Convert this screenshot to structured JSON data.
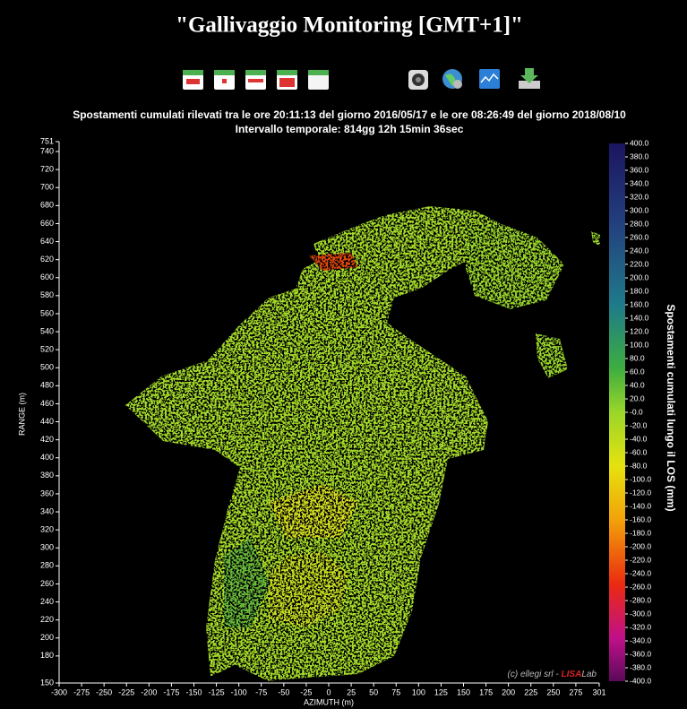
{
  "header": {
    "title": "\"Gallivaggio Monitoring [GMT+1]\""
  },
  "chart_data": {
    "type": "radar-map",
    "title": "Spostamenti cumulati rilevati tra le ore 20:11:13 del giorno 2016/05/17 e le ore 08:26:49 del giorno 2018/08/10",
    "subtitle": "Intervallo temporale: 814gg 12h 15min 36sec",
    "xlabel": "AZIMUTH (m)",
    "ylabel": "RANGE (m)",
    "xlim": [
      -300,
      301
    ],
    "xticks": [
      -300,
      -275,
      -250,
      -225,
      -200,
      -175,
      -150,
      -125,
      -100,
      -75,
      -50,
      -25,
      0,
      25,
      50,
      75,
      100,
      125,
      150,
      175,
      200,
      225,
      250,
      275,
      301
    ],
    "ylim": [
      150,
      751
    ],
    "yticks": [
      150,
      180,
      200,
      220,
      240,
      260,
      280,
      300,
      320,
      340,
      360,
      380,
      400,
      420,
      440,
      460,
      480,
      500,
      520,
      540,
      560,
      580,
      600,
      620,
      640,
      660,
      680,
      700,
      720,
      740,
      751
    ],
    "colorbar": {
      "label": "Spostamenti cumulati lungo il LOS (mm)",
      "lim": [
        -400,
        400
      ],
      "ticks": [
        {
          "value": 400,
          "label": "400.0"
        },
        {
          "value": 380,
          "label": "380.0"
        },
        {
          "value": 360,
          "label": "360.0"
        },
        {
          "value": 340,
          "label": "340.0"
        },
        {
          "value": 320,
          "label": "320.0"
        },
        {
          "value": 300,
          "label": "300.0"
        },
        {
          "value": 280,
          "label": "280.0"
        },
        {
          "value": 260,
          "label": "260.0"
        },
        {
          "value": 240,
          "label": "240.0"
        },
        {
          "value": 220,
          "label": "220.0"
        },
        {
          "value": 200,
          "label": "200.0"
        },
        {
          "value": 180,
          "label": "180.0"
        },
        {
          "value": 160,
          "label": "160.0"
        },
        {
          "value": 140,
          "label": "140.0"
        },
        {
          "value": 120,
          "label": "120.0"
        },
        {
          "value": 100,
          "label": "100.0"
        },
        {
          "value": 80,
          "label": "80.0"
        },
        {
          "value": 60,
          "label": "60.0"
        },
        {
          "value": 40,
          "label": "40.0"
        },
        {
          "value": 20,
          "label": "20.0"
        },
        {
          "value": 0,
          "label": "-0.0"
        },
        {
          "value": -20,
          "label": "-20.0"
        },
        {
          "value": -40,
          "label": "-40.0"
        },
        {
          "value": -60,
          "label": "-60.0"
        },
        {
          "value": -80,
          "label": "-80.0"
        },
        {
          "value": -100,
          "label": "-100.0"
        },
        {
          "value": -120,
          "label": "-120.0"
        },
        {
          "value": -140,
          "label": "-140.0"
        },
        {
          "value": -160,
          "label": "-160.0"
        },
        {
          "value": -180,
          "label": "-180.0"
        },
        {
          "value": -200,
          "label": "-200.0"
        },
        {
          "value": -220,
          "label": "-220.0"
        },
        {
          "value": -240,
          "label": "-240.0"
        },
        {
          "value": -260,
          "label": "-260.0"
        },
        {
          "value": -280,
          "label": "-280.0"
        },
        {
          "value": -300,
          "label": "-300.0"
        },
        {
          "value": -320,
          "label": "-320.0"
        },
        {
          "value": -340,
          "label": "-340.0"
        },
        {
          "value": -360,
          "label": "-360.0"
        },
        {
          "value": -380,
          "label": "-380.0"
        },
        {
          "value": -400,
          "label": "-400.0"
        }
      ]
    },
    "credit": {
      "prefix": "(c) ellegi srl - ",
      "accent": "LISA",
      "suffix": "Lab"
    }
  }
}
